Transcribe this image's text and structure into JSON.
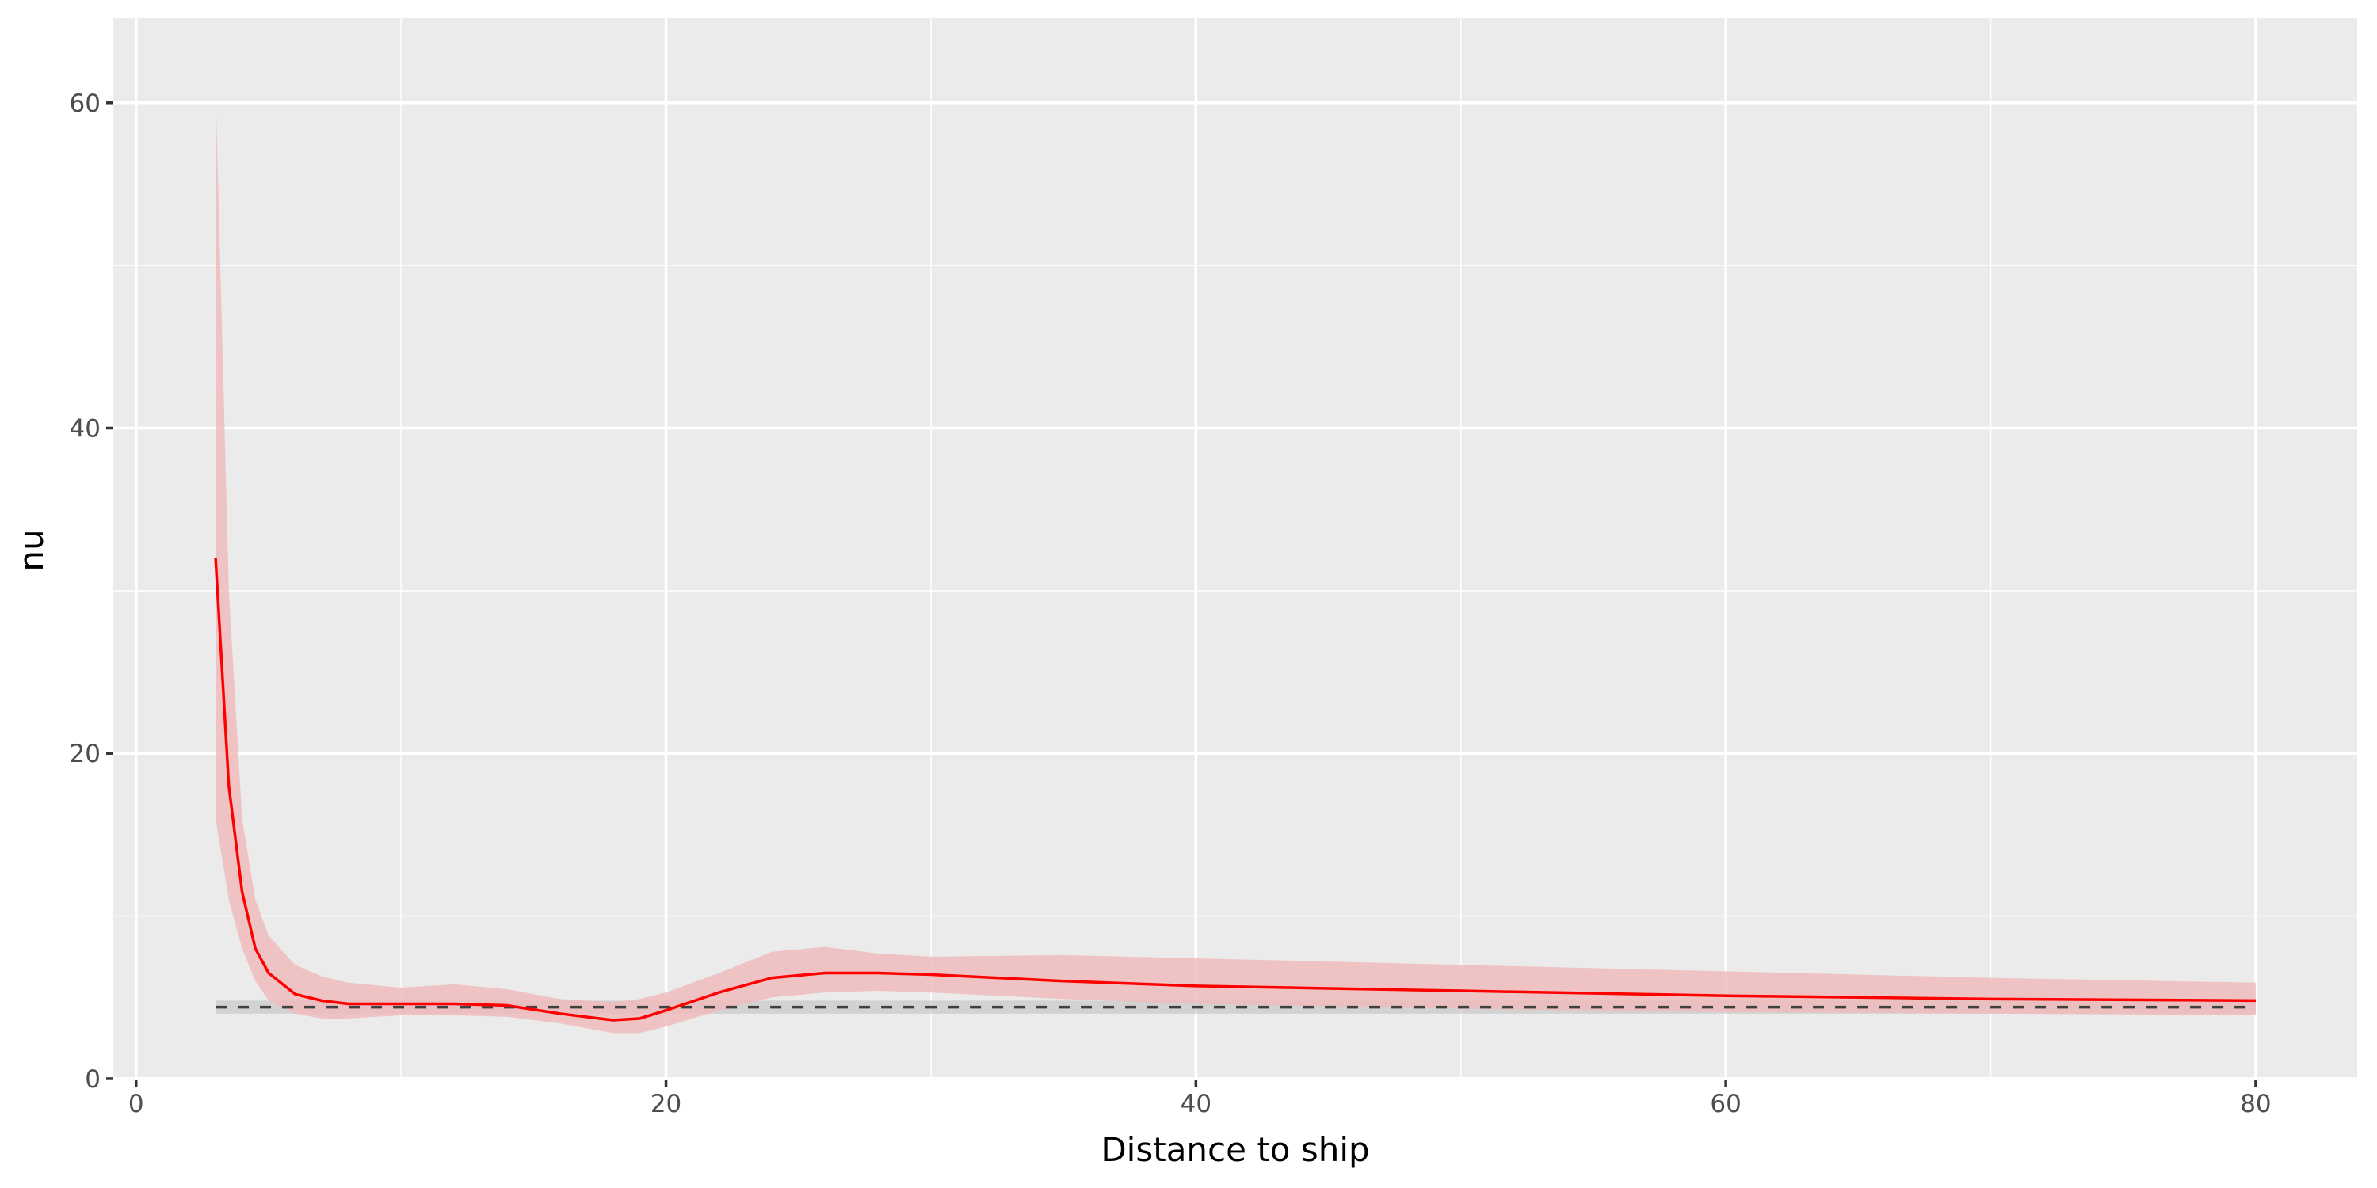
{
  "chart_data": {
    "type": "ribbon-line",
    "x_label": "Distance to ship",
    "y_label": "nu",
    "x": [
      3,
      3.5,
      4,
      4.5,
      5,
      6,
      7,
      8,
      10,
      12,
      14,
      16,
      18,
      19,
      20,
      22,
      24,
      26,
      28,
      30,
      35,
      40,
      50,
      60,
      70,
      80
    ],
    "series": [
      {
        "color": "#ff0000",
        "band_color": "#f0bcbc",
        "values": [
          32,
          18,
          11.5,
          8,
          6.5,
          5.2,
          4.8,
          4.6,
          4.6,
          4.6,
          4.5,
          4.0,
          3.6,
          3.7,
          4.2,
          5.3,
          6.2,
          6.5,
          6.5,
          6.4,
          6.0,
          5.7,
          5.4,
          5.1,
          4.9,
          4.8
        ],
        "lower": [
          16,
          11,
          8,
          6,
          4.8,
          4.0,
          3.7,
          3.7,
          3.9,
          3.9,
          3.8,
          3.4,
          2.8,
          2.8,
          3.2,
          4.2,
          5.0,
          5.3,
          5.4,
          5.3,
          4.9,
          4.6,
          4.3,
          4.1,
          4.0,
          3.9
        ],
        "upper": [
          61,
          30,
          16,
          11,
          8.8,
          7.0,
          6.3,
          5.9,
          5.6,
          5.8,
          5.5,
          4.9,
          4.7,
          4.9,
          5.3,
          6.5,
          7.8,
          8.1,
          7.7,
          7.5,
          7.6,
          7.4,
          7.0,
          6.6,
          6.2,
          5.9
        ]
      }
    ],
    "reference": {
      "x": [
        3,
        80
      ],
      "value": 4.4,
      "lower": 4.0,
      "upper": 4.8,
      "color": "#404040",
      "band_color": "#c8c8c8"
    },
    "xlim": [
      -0.86,
      83.83
    ],
    "ylim": [
      -0.1,
      65.2
    ],
    "xticks": [
      0,
      20,
      40,
      60,
      80
    ],
    "yticks": [
      0,
      20,
      40,
      60
    ],
    "x_minor_ticks": [
      10,
      30,
      50,
      70
    ],
    "y_minor_ticks": [
      10,
      30,
      50
    ],
    "grid": true
  }
}
